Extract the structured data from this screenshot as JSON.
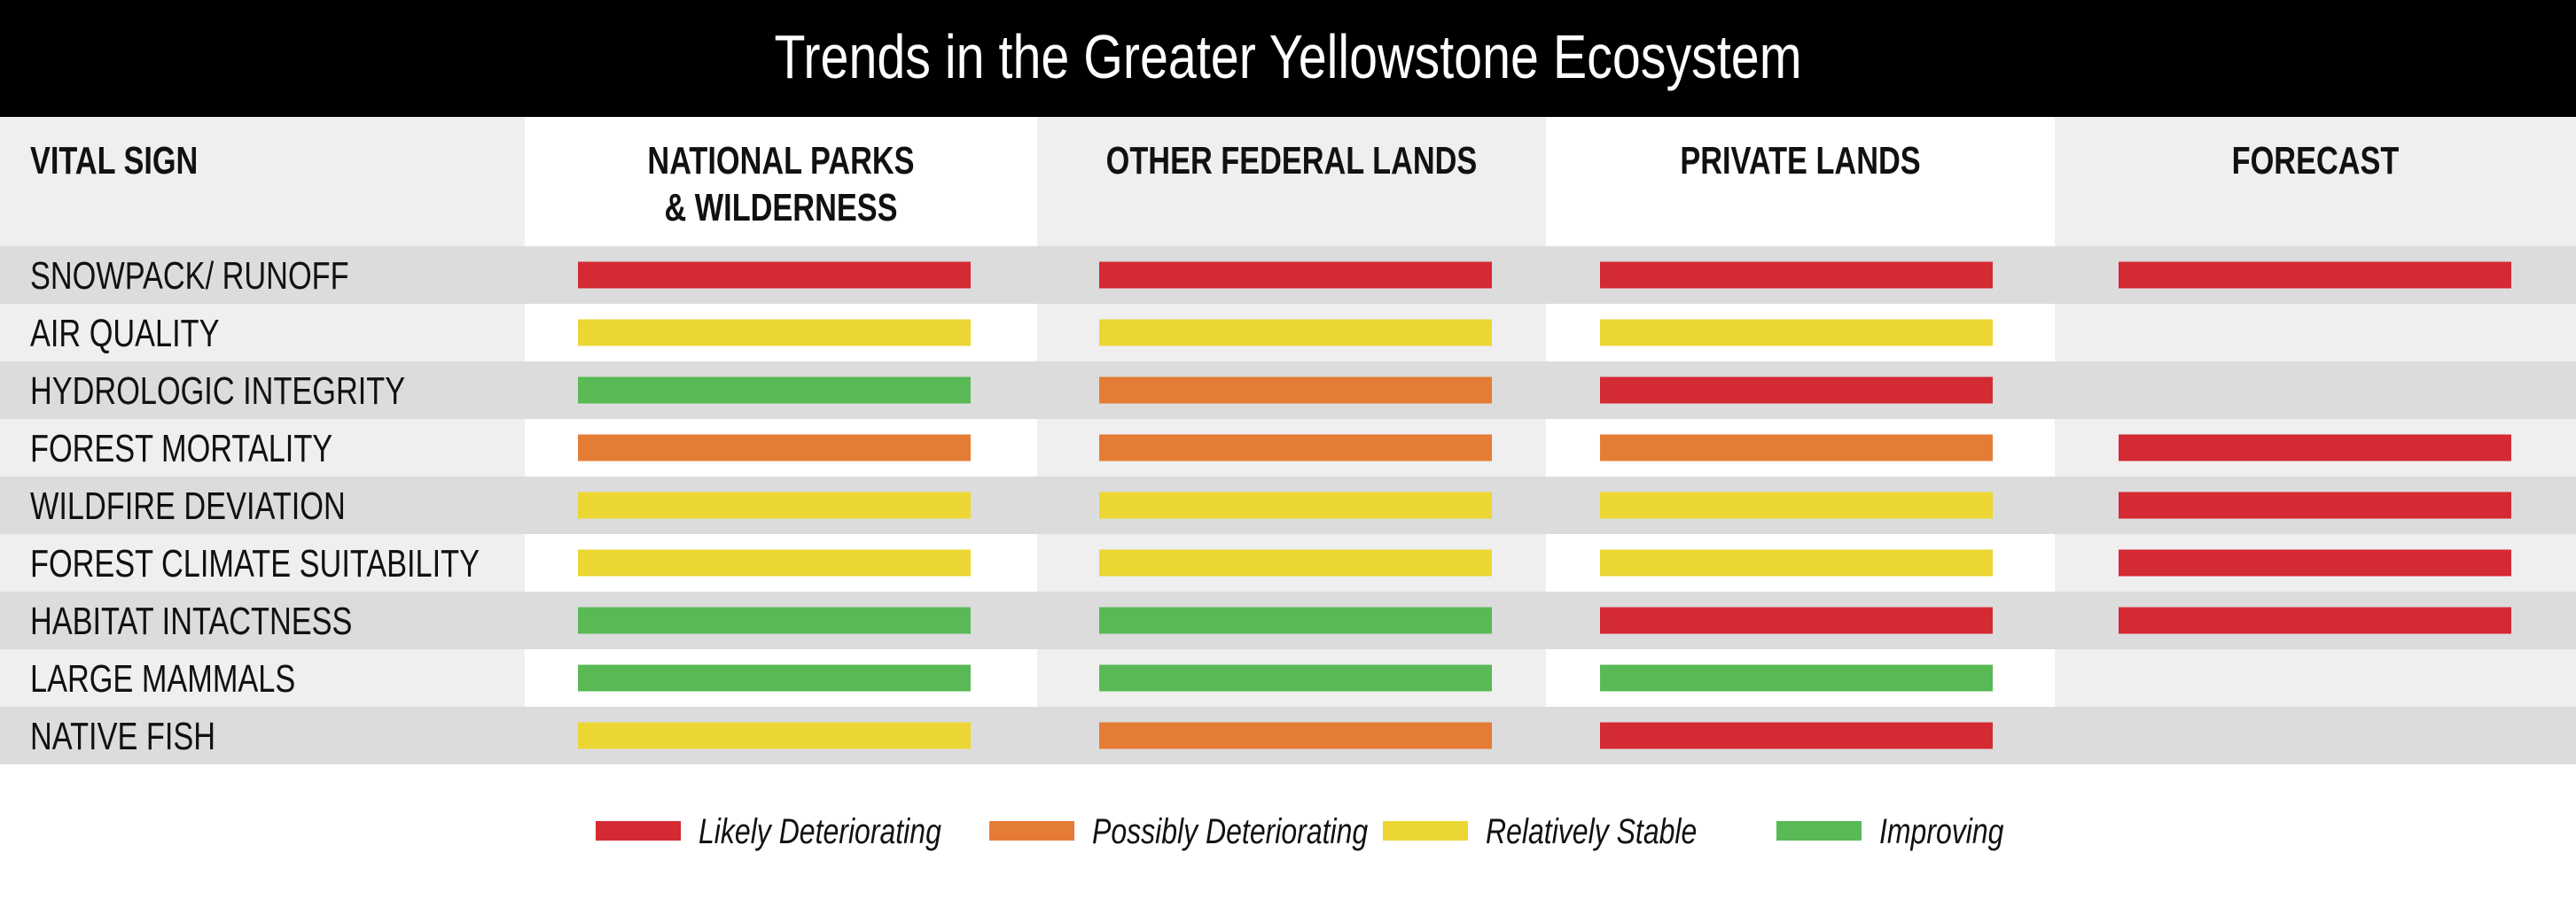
{
  "chart_data": {
    "type": "table",
    "title": "Trends in the Greater Yellowstone Ecosystem",
    "columns": [
      {
        "key": "vital_sign",
        "label_lines": [
          "VITAL SIGN"
        ]
      },
      {
        "key": "national_parks",
        "label_lines": [
          "NATIONAL PARKS",
          "& WILDERNESS"
        ]
      },
      {
        "key": "other_federal",
        "label_lines": [
          "OTHER FEDERAL LANDS"
        ]
      },
      {
        "key": "private",
        "label_lines": [
          "PRIVATE LANDS"
        ]
      },
      {
        "key": "forecast",
        "label_lines": [
          "FORECAST"
        ]
      }
    ],
    "statuses": {
      "likely_deteriorating": {
        "label": "Likely Deteriorating",
        "color": "#d42a34"
      },
      "possibly_deteriorating": {
        "label": "Possibly Deteriorating",
        "color": "#e57c35"
      },
      "relatively_stable": {
        "label": "Relatively Stable",
        "color": "#ecd634"
      },
      "improving": {
        "label": "Improving",
        "color": "#59b955"
      }
    },
    "legend_order": [
      "likely_deteriorating",
      "possibly_deteriorating",
      "relatively_stable",
      "improving"
    ],
    "rows": [
      {
        "vital_sign": "SNOWPACK/ RUNOFF",
        "national_parks": "likely_deteriorating",
        "other_federal": "likely_deteriorating",
        "private": "likely_deteriorating",
        "forecast": "likely_deteriorating"
      },
      {
        "vital_sign": "AIR QUALITY",
        "national_parks": "relatively_stable",
        "other_federal": "relatively_stable",
        "private": "relatively_stable",
        "forecast": null
      },
      {
        "vital_sign": "HYDROLOGIC INTEGRITY",
        "national_parks": "improving",
        "other_federal": "possibly_deteriorating",
        "private": "likely_deteriorating",
        "forecast": null
      },
      {
        "vital_sign": "FOREST MORTALITY",
        "national_parks": "possibly_deteriorating",
        "other_federal": "possibly_deteriorating",
        "private": "possibly_deteriorating",
        "forecast": "likely_deteriorating"
      },
      {
        "vital_sign": "WILDFIRE DEVIATION",
        "national_parks": "relatively_stable",
        "other_federal": "relatively_stable",
        "private": "relatively_stable",
        "forecast": "likely_deteriorating"
      },
      {
        "vital_sign": "FOREST CLIMATE SUITABILITY",
        "national_parks": "relatively_stable",
        "other_federal": "relatively_stable",
        "private": "relatively_stable",
        "forecast": "likely_deteriorating"
      },
      {
        "vital_sign": "HABITAT INTACTNESS",
        "national_parks": "improving",
        "other_federal": "improving",
        "private": "likely_deteriorating",
        "forecast": "likely_deteriorating"
      },
      {
        "vital_sign": "LARGE MAMMALS",
        "national_parks": "improving",
        "other_federal": "improving",
        "private": "improving",
        "forecast": null
      },
      {
        "vital_sign": "NATIVE FISH",
        "national_parks": "relatively_stable",
        "other_federal": "possibly_deteriorating",
        "private": "likely_deteriorating",
        "forecast": null
      }
    ]
  }
}
